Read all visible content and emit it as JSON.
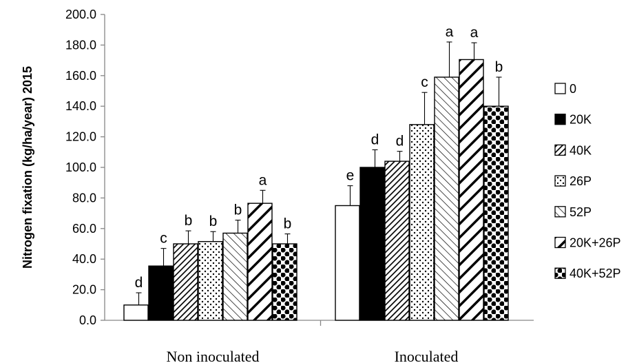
{
  "chart_data": {
    "type": "bar",
    "title": "",
    "xlabel": "",
    "ylabel": "Nitrogen fixation (kg/ha/year) 2015",
    "ylim": [
      0,
      200
    ],
    "yticks": [
      "0.0",
      "20.0",
      "40.0",
      "60.0",
      "80.0",
      "100.0",
      "120.0",
      "140.0",
      "160.0",
      "180.0",
      "200.0"
    ],
    "categories": [
      "Non inoculated",
      "Inoculated"
    ],
    "series": [
      {
        "name": "0",
        "values": [
          10,
          75
        ],
        "errors": [
          8,
          13
        ],
        "letters": [
          "d",
          "e"
        ],
        "pattern": "white"
      },
      {
        "name": "20K",
        "values": [
          35.5,
          100
        ],
        "errors": [
          11.5,
          11.5
        ],
        "letters": [
          "c",
          "d"
        ],
        "pattern": "black"
      },
      {
        "name": "40K",
        "values": [
          50,
          104
        ],
        "errors": [
          8.5,
          6.5
        ],
        "letters": [
          "b",
          "d"
        ],
        "pattern": "dense-diag"
      },
      {
        "name": "26P",
        "values": [
          51.5,
          128
        ],
        "errors": [
          6.5,
          21
        ],
        "letters": [
          "b",
          "c"
        ],
        "pattern": "dots"
      },
      {
        "name": "52P",
        "values": [
          57,
          159
        ],
        "errors": [
          8.5,
          23
        ],
        "letters": [
          "b",
          "a"
        ],
        "pattern": "fwd-diag"
      },
      {
        "name": "20K+26P",
        "values": [
          76.5,
          170.5
        ],
        "errors": [
          8.5,
          11
        ],
        "letters": [
          "a",
          "a"
        ],
        "pattern": "wide-diag"
      },
      {
        "name": "40K+52P",
        "values": [
          50,
          140
        ],
        "errors": [
          6.5,
          19
        ],
        "letters": [
          "b",
          "b"
        ],
        "pattern": "checker"
      }
    ],
    "legend_position": "right",
    "grid": false
  }
}
